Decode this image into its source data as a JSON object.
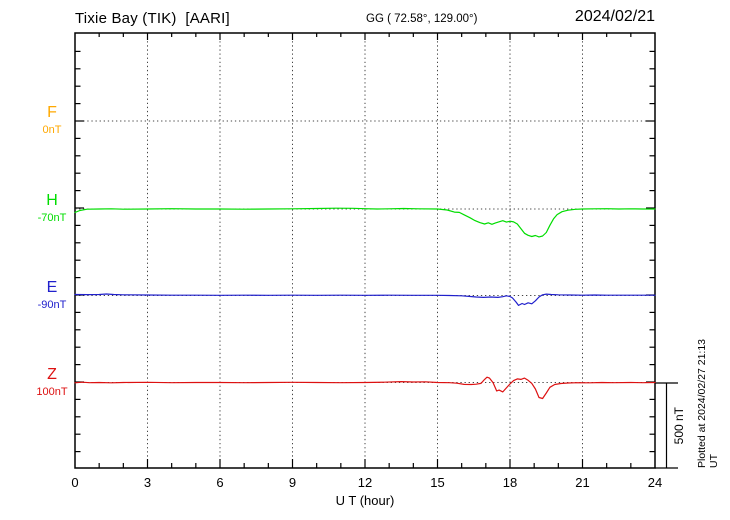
{
  "header": {
    "title": "Tixie Bay (TIK)  [AARI]",
    "coords": "GG ( 72.58°, 129.00°)",
    "date": "2024/02/21"
  },
  "footer": {
    "plotted_note": "Plotted at 2024/02/27 21:13 UT"
  },
  "chart_data": {
    "type": "line",
    "title": "Tixie Bay (TIK) [AARI] magnetogram 2024/02/21",
    "xlabel": "U T (hour)",
    "x_range": [
      0,
      24
    ],
    "x_ticks_major": [
      0,
      3,
      6,
      9,
      12,
      15,
      18,
      21,
      24
    ],
    "grid_hours": [
      3,
      6,
      9,
      12,
      15,
      18,
      21
    ],
    "grid": "dotted",
    "scale_bar": {
      "label": "500 nT",
      "span_nT": 500
    },
    "series": [
      {
        "name": "F",
        "color": "#FFA800",
        "baseline_label": "0nT",
        "baseline_nT": 0,
        "points": []
      },
      {
        "name": "H",
        "color": "#00DD00",
        "baseline_label": "-70nT",
        "baseline_nT": -70,
        "points": [
          [
            0,
            -90
          ],
          [
            0.2,
            -79
          ],
          [
            0.5,
            -71
          ],
          [
            1,
            -70
          ],
          [
            1.5,
            -69
          ],
          [
            2,
            -71
          ],
          [
            3,
            -70
          ],
          [
            4,
            -68
          ],
          [
            5,
            -70
          ],
          [
            6,
            -70
          ],
          [
            7,
            -71
          ],
          [
            8,
            -70
          ],
          [
            9,
            -69
          ],
          [
            10,
            -67
          ],
          [
            10.8,
            -65
          ],
          [
            11.5,
            -66
          ],
          [
            12,
            -68
          ],
          [
            12.5,
            -70
          ],
          [
            13,
            -69
          ],
          [
            13.6,
            -67
          ],
          [
            14.2,
            -69
          ],
          [
            15,
            -70
          ],
          [
            15.4,
            -76
          ],
          [
            15.7,
            -88
          ],
          [
            15.9,
            -90
          ],
          [
            16.1,
            -104
          ],
          [
            16.35,
            -122
          ],
          [
            16.55,
            -138
          ],
          [
            16.75,
            -150
          ],
          [
            16.95,
            -158
          ],
          [
            17.1,
            -151
          ],
          [
            17.25,
            -160
          ],
          [
            17.4,
            -152
          ],
          [
            17.55,
            -145
          ],
          [
            17.7,
            -139
          ],
          [
            17.85,
            -147
          ],
          [
            18,
            -142
          ],
          [
            18.15,
            -146
          ],
          [
            18.3,
            -158
          ],
          [
            18.45,
            -185
          ],
          [
            18.6,
            -213
          ],
          [
            18.75,
            -225
          ],
          [
            18.9,
            -232
          ],
          [
            19.05,
            -226
          ],
          [
            19.2,
            -234
          ],
          [
            19.35,
            -229
          ],
          [
            19.5,
            -208
          ],
          [
            19.65,
            -166
          ],
          [
            19.8,
            -128
          ],
          [
            19.95,
            -103
          ],
          [
            20.15,
            -86
          ],
          [
            20.4,
            -77
          ],
          [
            20.7,
            -72
          ],
          [
            21,
            -70
          ],
          [
            21.5,
            -69
          ],
          [
            22,
            -68
          ],
          [
            22.5,
            -70
          ],
          [
            23,
            -69
          ],
          [
            23.5,
            -70
          ],
          [
            24,
            -70
          ]
        ]
      },
      {
        "name": "E",
        "color": "#2020CC",
        "baseline_label": "-90nT",
        "baseline_nT": -90,
        "points": [
          [
            0,
            -84
          ],
          [
            0.5,
            -85
          ],
          [
            1,
            -84
          ],
          [
            1.3,
            -81
          ],
          [
            1.6,
            -84
          ],
          [
            2,
            -86
          ],
          [
            3,
            -87
          ],
          [
            4,
            -88
          ],
          [
            5,
            -88
          ],
          [
            6,
            -89
          ],
          [
            7,
            -88
          ],
          [
            8,
            -89
          ],
          [
            9,
            -88
          ],
          [
            10,
            -89
          ],
          [
            11,
            -88
          ],
          [
            12,
            -89
          ],
          [
            13,
            -88
          ],
          [
            14,
            -89
          ],
          [
            15,
            -89
          ],
          [
            15.5,
            -90
          ],
          [
            16,
            -92
          ],
          [
            16.3,
            -95
          ],
          [
            16.6,
            -99
          ],
          [
            16.9,
            -101
          ],
          [
            17.2,
            -99
          ],
          [
            17.5,
            -101
          ],
          [
            17.7,
            -97
          ],
          [
            17.85,
            -92
          ],
          [
            18,
            -96
          ],
          [
            18.1,
            -104
          ],
          [
            18.25,
            -128
          ],
          [
            18.35,
            -148
          ],
          [
            18.5,
            -137
          ],
          [
            18.6,
            -143
          ],
          [
            18.75,
            -133
          ],
          [
            18.9,
            -139
          ],
          [
            19.05,
            -121
          ],
          [
            19.2,
            -99
          ],
          [
            19.35,
            -86
          ],
          [
            19.5,
            -82
          ],
          [
            19.7,
            -84
          ],
          [
            20,
            -86
          ],
          [
            20.5,
            -87
          ],
          [
            21,
            -88
          ],
          [
            21.5,
            -87
          ],
          [
            22,
            -88
          ],
          [
            23,
            -88
          ],
          [
            24,
            -88
          ]
        ]
      },
      {
        "name": "Z",
        "color": "#DD1111",
        "baseline_label": "100nT",
        "baseline_nT": 100,
        "points": [
          [
            0,
            98
          ],
          [
            0.3,
            102
          ],
          [
            0.6,
            99
          ],
          [
            1,
            100
          ],
          [
            1.5,
            98
          ],
          [
            2,
            100
          ],
          [
            3,
            101
          ],
          [
            4,
            99
          ],
          [
            5,
            100
          ],
          [
            6,
            100
          ],
          [
            7,
            99
          ],
          [
            8,
            100
          ],
          [
            9,
            101
          ],
          [
            10,
            100
          ],
          [
            11,
            99
          ],
          [
            12,
            100
          ],
          [
            12.8,
            102
          ],
          [
            13.5,
            105
          ],
          [
            14,
            103
          ],
          [
            14.5,
            104
          ],
          [
            15,
            100
          ],
          [
            15.5,
            99
          ],
          [
            15.8,
            96
          ],
          [
            16.1,
            89
          ],
          [
            16.4,
            88
          ],
          [
            16.6,
            90
          ],
          [
            16.8,
            95
          ],
          [
            16.95,
            118
          ],
          [
            17.05,
            131
          ],
          [
            17.15,
            126
          ],
          [
            17.3,
            99
          ],
          [
            17.45,
            50
          ],
          [
            17.55,
            55
          ],
          [
            17.7,
            45
          ],
          [
            17.85,
            68
          ],
          [
            18,
            92
          ],
          [
            18.15,
            111
          ],
          [
            18.3,
            121
          ],
          [
            18.45,
            118
          ],
          [
            18.6,
            126
          ],
          [
            18.75,
            113
          ],
          [
            18.9,
            95
          ],
          [
            19.05,
            62
          ],
          [
            19.2,
            12
          ],
          [
            19.35,
            6
          ],
          [
            19.5,
            38
          ],
          [
            19.65,
            72
          ],
          [
            19.85,
            88
          ],
          [
            20.1,
            94
          ],
          [
            20.4,
            97
          ],
          [
            20.8,
            99
          ],
          [
            21.3,
            98
          ],
          [
            21.8,
            100
          ],
          [
            22.3,
            99
          ],
          [
            23,
            100
          ],
          [
            23.5,
            99
          ],
          [
            24,
            100
          ]
        ]
      }
    ]
  }
}
